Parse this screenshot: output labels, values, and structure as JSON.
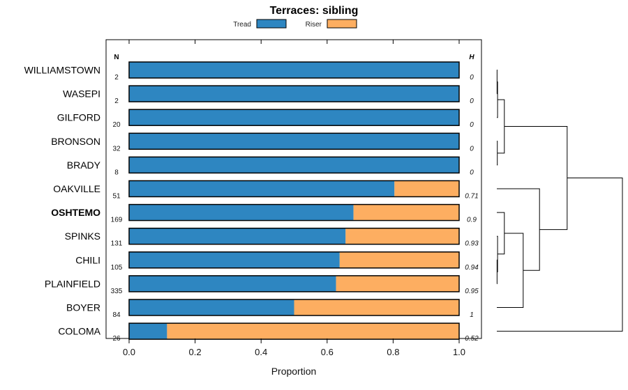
{
  "chart_data": {
    "type": "bar",
    "orientation": "horizontal",
    "stacked": true,
    "title": "Terraces: sibling",
    "xlabel": "Proportion",
    "ylabel": "",
    "xlim": [
      0,
      1
    ],
    "x_ticks": [
      "0.0",
      "0.2",
      "0.4",
      "0.6",
      "0.8",
      "1.0"
    ],
    "x_tick_values": [
      0,
      0.2,
      0.4,
      0.6,
      0.8,
      1.0
    ],
    "legend_position": "top",
    "n_header": "N",
    "h_header": "H",
    "categories": [
      "WILLIAMSTOWN",
      "WASEPI",
      "GILFORD",
      "BRONSON",
      "BRADY",
      "OAKVILLE",
      "OSHTEMO",
      "SPINKS",
      "CHILI",
      "PLAINFIELD",
      "BOYER",
      "COLOMA"
    ],
    "highlight_category": "OSHTEMO",
    "n": [
      "2",
      "2",
      "20",
      "32",
      "8",
      "51",
      "169",
      "131",
      "105",
      "335",
      "84",
      "26"
    ],
    "h": [
      "0",
      "0",
      "0",
      "0",
      "0",
      "0.71",
      "0.9",
      "0.93",
      "0.94",
      "0.95",
      "1",
      "0.52"
    ],
    "series": [
      {
        "name": "Tread",
        "color": "#2e86c1",
        "values": [
          1.0,
          1.0,
          1.0,
          1.0,
          1.0,
          0.804,
          0.68,
          0.656,
          0.638,
          0.627,
          0.5,
          0.115
        ]
      },
      {
        "name": "Riser",
        "color": "#fdae61",
        "values": [
          0.0,
          0.0,
          0.0,
          0.0,
          0.0,
          0.196,
          0.32,
          0.344,
          0.362,
          0.373,
          0.5,
          0.885
        ]
      }
    ],
    "dendrogram": {
      "leaves_order": [
        "WILLIAMSTOWN",
        "WASEPI",
        "GILFORD",
        "BRONSON",
        "BRADY",
        "OAKVILLE",
        "OSHTEMO",
        "SPINKS",
        "CHILI",
        "PLAINFIELD",
        "BOYER",
        "COLOMA"
      ],
      "merges": [
        {
          "a": 0,
          "b": 1,
          "height": 0.002
        },
        {
          "a": 3,
          "b": 4,
          "height": 0.004
        },
        {
          "a": "m0",
          "b": 2,
          "height": 0.006
        },
        {
          "a": "m2",
          "b": "m1",
          "height": 0.06
        },
        {
          "a": 8,
          "b": 9,
          "height": 0.002
        },
        {
          "a": 7,
          "b": "m4",
          "height": 0.006
        },
        {
          "a": 6,
          "b": "m5",
          "height": 0.06
        },
        {
          "a": "m6",
          "b": 10,
          "height": 0.21
        },
        {
          "a": 5,
          "b": "m7",
          "height": 0.34
        },
        {
          "a": "m3",
          "b": "m8",
          "height": 0.56
        },
        {
          "a": "m9",
          "b": 11,
          "height": 1.0
        }
      ]
    }
  }
}
